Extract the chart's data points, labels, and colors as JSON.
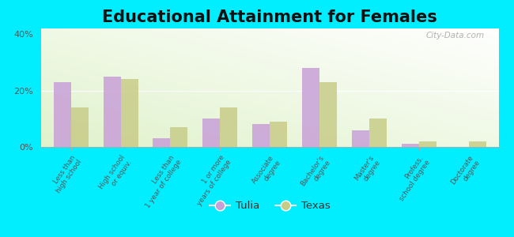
{
  "title": "Educational Attainment for Females",
  "categories": [
    "Less than\nhigh school",
    "High school\nor equiv.",
    "Less than\n1 year of college",
    "1 or more\nyears of college",
    "Associate\ndegree",
    "Bachelor's\ndegree",
    "Master's\ndegree",
    "Profess.\nschool degree",
    "Doctorate\ndegree"
  ],
  "tulia": [
    23,
    25,
    3,
    10,
    8,
    28,
    6,
    1,
    0
  ],
  "texas": [
    14,
    24,
    7,
    14,
    9,
    23,
    10,
    2,
    2
  ],
  "tulia_color": "#c8a0d8",
  "texas_color": "#c8cc88",
  "background_fig": "#00eeff",
  "ylim": [
    0,
    42
  ],
  "yticks": [
    0,
    20,
    40
  ],
  "ytick_labels": [
    "0%",
    "20%",
    "40%"
  ],
  "bar_width": 0.35,
  "legend_tulia": "Tulia",
  "legend_texas": "Texas",
  "title_fontsize": 15,
  "watermark": "City-Data.com"
}
